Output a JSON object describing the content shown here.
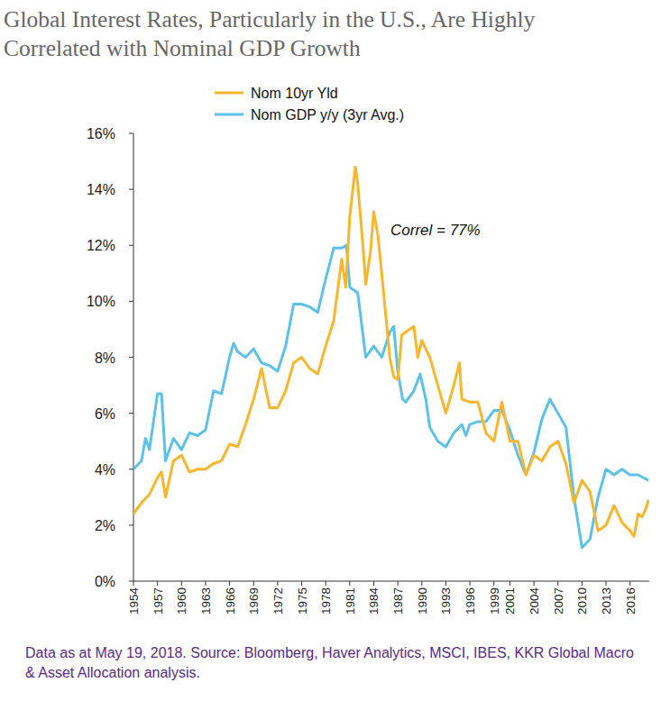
{
  "chart_data": {
    "type": "line",
    "title": "Global Interest Rates, Particularly in the U.S., Are Highly Correlated with Nominal GDP Growth",
    "annotation": "Correl = 77%",
    "source": "Data as at May 19, 2018. Source: Bloomberg, Haver Analytics, MSCI, IBES, KKR Global Macro & Asset Allocation analysis.",
    "legend": "top",
    "grid": false,
    "xlim": [
      1954,
      2018.4
    ],
    "xticks": [
      1954,
      1957,
      1960,
      1963,
      1966,
      1969,
      1972,
      1975,
      1978,
      1981,
      1984,
      1987,
      1990,
      1993,
      1996,
      1999,
      2001,
      2004,
      2007,
      2010,
      2013,
      2016
    ],
    "ylim": [
      0,
      16
    ],
    "yticks": [
      {
        "value": 0,
        "label": "0%"
      },
      {
        "value": 2,
        "label": "2%"
      },
      {
        "value": 4,
        "label": "4%"
      },
      {
        "value": 6,
        "label": "6%"
      },
      {
        "value": 8,
        "label": "8%"
      },
      {
        "value": 10,
        "label": "10%"
      },
      {
        "value": 12,
        "label": "12%"
      },
      {
        "value": 14,
        "label": "14%"
      },
      {
        "value": 16,
        "label": "16%"
      }
    ],
    "series": [
      {
        "name": "Nom 10yr Yld",
        "color": "#f9b52c",
        "x": [
          1954,
          1955,
          1956,
          1957,
          1957.5,
          1958,
          1959,
          1960,
          1961,
          1962,
          1963,
          1964,
          1965,
          1966,
          1967,
          1968,
          1969,
          1970,
          1971,
          1972,
          1973,
          1974,
          1975,
          1976,
          1977,
          1978,
          1979,
          1980,
          1980.5,
          1981,
          1981.7,
          1982,
          1982.7,
          1983,
          1983.6,
          1984,
          1984.5,
          1985,
          1986,
          1986.5,
          1987,
          1987.5,
          1988,
          1989,
          1989.5,
          1990,
          1991,
          1992,
          1993,
          1994,
          1994.7,
          1995,
          1996,
          1997,
          1998,
          1999,
          2000,
          2001,
          2002,
          2003,
          2004,
          2005,
          2006,
          2007,
          2008,
          2009,
          2010,
          2011,
          2012,
          2013,
          2014,
          2015,
          2016,
          2016.5,
          2017,
          2017.5,
          2018,
          2018.3
        ],
        "values": [
          2.4,
          2.8,
          3.1,
          3.7,
          3.9,
          3.0,
          4.3,
          4.5,
          3.9,
          4.0,
          4.0,
          4.2,
          4.3,
          4.9,
          4.8,
          5.6,
          6.5,
          7.6,
          6.2,
          6.2,
          6.8,
          7.8,
          8.0,
          7.6,
          7.4,
          8.4,
          9.3,
          11.5,
          10.5,
          13.0,
          14.8,
          14.2,
          11.8,
          10.6,
          11.8,
          13.2,
          12.4,
          11.0,
          8.0,
          7.3,
          7.2,
          8.8,
          8.9,
          9.1,
          8.0,
          8.6,
          8.0,
          7.0,
          6.0,
          7.0,
          7.8,
          6.5,
          6.4,
          6.4,
          5.3,
          5.0,
          6.4,
          5.0,
          5.0,
          3.8,
          4.5,
          4.3,
          4.8,
          5.0,
          4.2,
          2.8,
          3.6,
          3.2,
          1.8,
          2.0,
          2.7,
          2.1,
          1.8,
          1.6,
          2.4,
          2.3,
          2.6,
          2.9
        ]
      },
      {
        "name": "Nom GDP y/y (3yr Avg.)",
        "color": "#5cc1e9",
        "x": [
          1954,
          1955,
          1955.5,
          1956,
          1957,
          1957.5,
          1958,
          1959,
          1960,
          1961,
          1962,
          1963,
          1964,
          1965,
          1966,
          1966.5,
          1967,
          1968,
          1969,
          1970,
          1971,
          1972,
          1973,
          1974,
          1975,
          1976,
          1977,
          1978,
          1979,
          1980,
          1980.6,
          1981,
          1982,
          1983,
          1984,
          1985,
          1986,
          1986.5,
          1987,
          1987.6,
          1988,
          1989,
          1989.8,
          1990.5,
          1991,
          1992,
          1993,
          1994,
          1995,
          1995.5,
          1996,
          1997,
          1998,
          1999,
          2000,
          2001,
          2002,
          2003,
          2004,
          2005,
          2006,
          2007,
          2008,
          2009,
          2010,
          2011,
          2012,
          2013,
          2014,
          2015,
          2016,
          2017,
          2018.3
        ],
        "values": [
          4.0,
          4.3,
          5.1,
          4.7,
          6.7,
          6.7,
          4.3,
          5.1,
          4.7,
          5.3,
          5.2,
          5.4,
          6.8,
          6.7,
          8.0,
          8.5,
          8.2,
          8.0,
          8.3,
          7.8,
          7.7,
          7.5,
          8.4,
          9.9,
          9.9,
          9.8,
          9.6,
          10.8,
          11.9,
          11.9,
          12.0,
          10.5,
          10.3,
          8.0,
          8.4,
          8.0,
          8.9,
          9.1,
          7.5,
          6.5,
          6.4,
          6.8,
          7.4,
          6.5,
          5.5,
          5.0,
          4.8,
          5.3,
          5.6,
          5.2,
          5.6,
          5.7,
          5.7,
          6.1,
          6.1,
          5.4,
          4.5,
          3.8,
          4.6,
          5.8,
          6.5,
          6.0,
          5.5,
          3.0,
          1.2,
          1.5,
          3.0,
          4.0,
          3.8,
          4.0,
          3.8,
          3.8,
          3.6
        ]
      }
    ]
  }
}
